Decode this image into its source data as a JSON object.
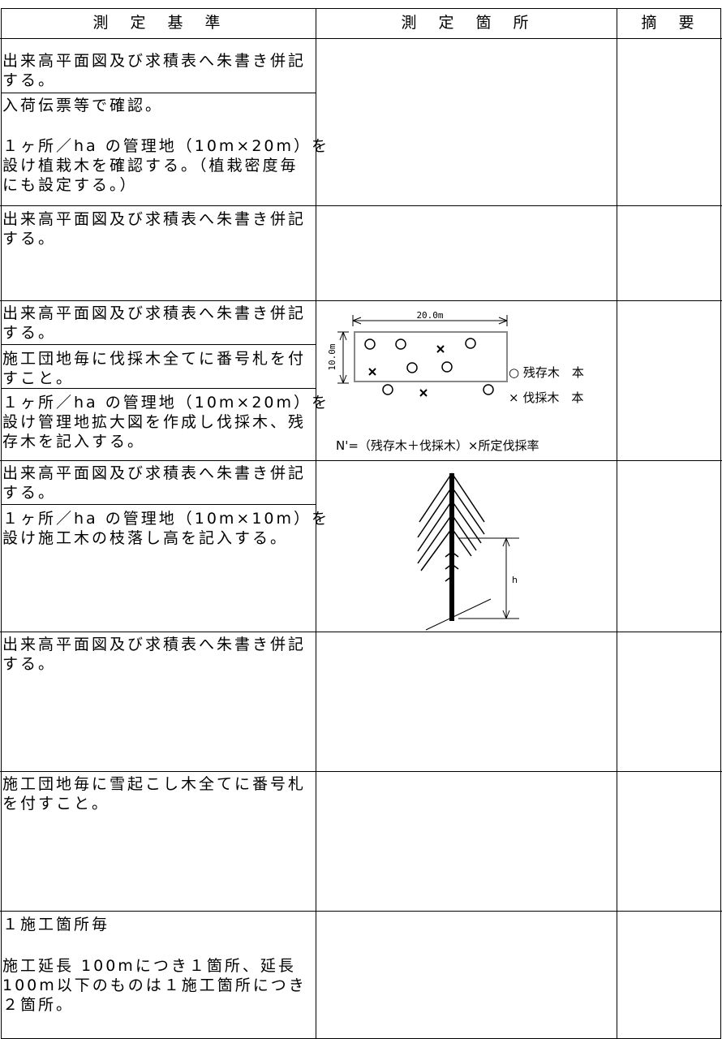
{
  "header": {
    "columns": [
      "測　定　基　準",
      "測　定　箇　所",
      "摘　要"
    ]
  },
  "rows": [
    {
      "criteria": [
        [
          "出来高平面図及び求積表へ朱書き併記",
          "する。"
        ],
        [
          "入荷伝票等で確認。"
        ],
        [
          "１ヶ所／ha の管理地（10m×20m）を",
          "設け植栽木を確認する。（植栽密度毎",
          "にも設定する。）"
        ]
      ]
    },
    {
      "criteria": [
        [
          "出来高平面図及び求積表へ朱書き併記",
          "する。"
        ]
      ]
    },
    {
      "criteria": [
        [
          "出来高平面図及び求積表へ朱書き併記",
          "する。"
        ],
        [
          "施工団地毎に伐採木全てに番号札を付",
          "すこと。"
        ],
        [
          "１ヶ所／ha の管理地（10m×20m）を",
          "設け管理地拡大図を作成し伐採木、残",
          "存木を記入する。"
        ]
      ]
    },
    {
      "criteria": [
        [
          "出来高平面図及び求積表へ朱書き併記",
          "する。"
        ],
        [
          "１ヶ所／ha の管理地（10m×10m）を",
          "設け施工木の枝落し高を記入する。"
        ]
      ]
    },
    {
      "criteria": [
        [
          "出来高平面図及び求積表へ朱書き併記",
          "する。"
        ]
      ]
    },
    {
      "criteria": [
        [
          "施工団地毎に雪起こし木全てに番号札",
          "を付すこと。"
        ]
      ]
    },
    {
      "criteria": [
        [
          "１施工箇所毎"
        ],
        [
          "施工延長 100mにつき１箇所、延長",
          "100m以下のものは１施工箇所につき",
          "２箇所。"
        ]
      ]
    }
  ],
  "diagrams": {
    "plot": {
      "width_label": "20.0m",
      "height_label": "10.0m",
      "legend_remaining": "○ 残存木　本",
      "legend_felled": "× 伐採木　本",
      "formula": "N'=（残存木＋伐採木）×所定伐採率"
    },
    "tree": {
      "height_label": "h"
    }
  }
}
